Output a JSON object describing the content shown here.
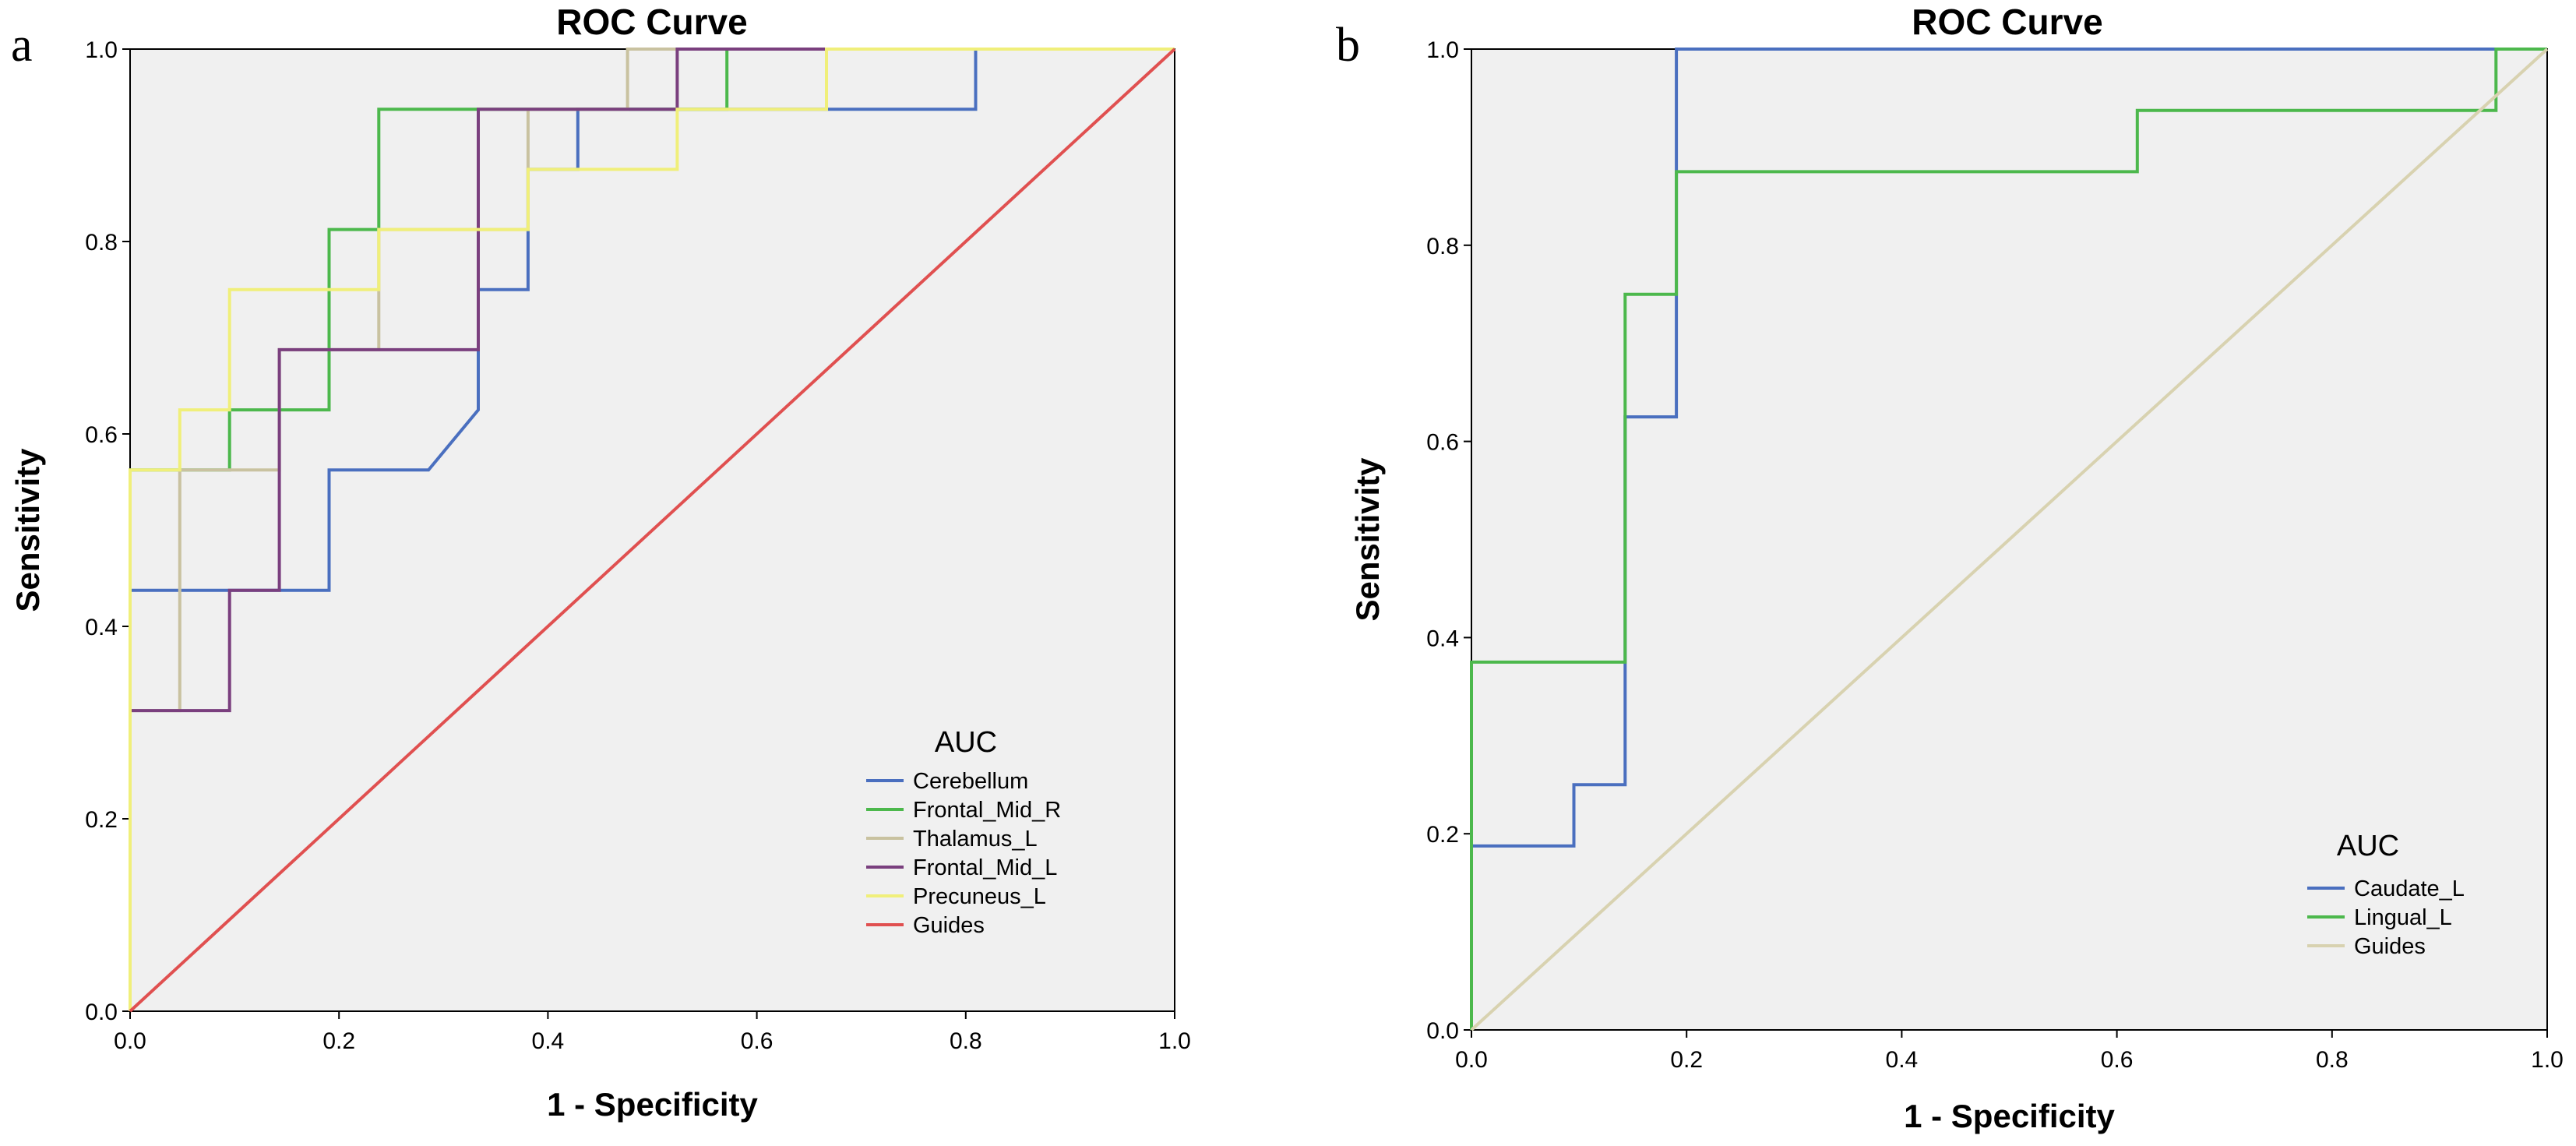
{
  "chart_data": [
    {
      "type": "line",
      "panel_label": "a",
      "title": "ROC Curve",
      "xlabel": "1 - Specificity",
      "ylabel": "Sensitivity",
      "xlim": [
        0,
        1
      ],
      "ylim": [
        0,
        1
      ],
      "x_ticks": [
        "0.0",
        "0.2",
        "0.4",
        "0.6",
        "0.8",
        "1.0"
      ],
      "y_ticks": [
        "0.0",
        "0.2",
        "0.4",
        "0.6",
        "0.8",
        "1.0"
      ],
      "grid": false,
      "legend": {
        "title": "AUC",
        "position": "bottom-right"
      },
      "series": [
        {
          "name": "Cerebellum",
          "color": "#4a6fbf",
          "points": [
            [
              0,
              0
            ],
            [
              0,
              0.4375
            ],
            [
              0.1905,
              0.4375
            ],
            [
              0.1905,
              0.5625
            ],
            [
              0.2857,
              0.5625
            ],
            [
              0.3333,
              0.625
            ],
            [
              0.3333,
              0.75
            ],
            [
              0.381,
              0.75
            ],
            [
              0.381,
              0.875
            ],
            [
              0.4286,
              0.875
            ],
            [
              0.4286,
              0.9375
            ],
            [
              0.8095,
              0.9375
            ],
            [
              0.8095,
              1
            ],
            [
              1,
              1
            ]
          ]
        },
        {
          "name": "Frontal_Mid_R",
          "color": "#4cb84c",
          "points": [
            [
              0,
              0
            ],
            [
              0,
              0.5625
            ],
            [
              0.0952,
              0.5625
            ],
            [
              0.0952,
              0.625
            ],
            [
              0.1905,
              0.625
            ],
            [
              0.1905,
              0.8125
            ],
            [
              0.2381,
              0.8125
            ],
            [
              0.2381,
              0.9375
            ],
            [
              0.5714,
              0.9375
            ],
            [
              0.5714,
              1
            ],
            [
              1,
              1
            ]
          ]
        },
        {
          "name": "Thalamus_L",
          "color": "#c9c2a0",
          "points": [
            [
              0,
              0
            ],
            [
              0,
              0.3125
            ],
            [
              0.0476,
              0.3125
            ],
            [
              0.0476,
              0.5625
            ],
            [
              0.1429,
              0.5625
            ],
            [
              0.1429,
              0.6875
            ],
            [
              0.2381,
              0.6875
            ],
            [
              0.2381,
              0.8125
            ],
            [
              0.381,
              0.8125
            ],
            [
              0.381,
              0.875
            ],
            [
              0.381,
              0.9375
            ],
            [
              0.4762,
              0.9375
            ],
            [
              0.4762,
              1
            ],
            [
              1,
              1
            ]
          ]
        },
        {
          "name": "Frontal_Mid_L",
          "color": "#7a3f7e",
          "points": [
            [
              0,
              0
            ],
            [
              0,
              0.3125
            ],
            [
              0.0952,
              0.3125
            ],
            [
              0.0952,
              0.4375
            ],
            [
              0.1429,
              0.4375
            ],
            [
              0.1429,
              0.6875
            ],
            [
              0.3333,
              0.6875
            ],
            [
              0.3333,
              0.9375
            ],
            [
              0.5238,
              0.9375
            ],
            [
              0.5238,
              1
            ],
            [
              1,
              1
            ]
          ]
        },
        {
          "name": "Precuneus_L",
          "color": "#f0ef7a",
          "points": [
            [
              0,
              0
            ],
            [
              0,
              0.5625
            ],
            [
              0.0476,
              0.5625
            ],
            [
              0.0476,
              0.625
            ],
            [
              0.0952,
              0.625
            ],
            [
              0.0952,
              0.75
            ],
            [
              0.2381,
              0.75
            ],
            [
              0.2381,
              0.8125
            ],
            [
              0.381,
              0.8125
            ],
            [
              0.381,
              0.875
            ],
            [
              0.5238,
              0.875
            ],
            [
              0.5238,
              0.9375
            ],
            [
              0.6667,
              0.9375
            ],
            [
              0.6667,
              1
            ],
            [
              1,
              1
            ]
          ]
        },
        {
          "name": "Guides",
          "color": "#e05050",
          "points": [
            [
              0,
              0
            ],
            [
              1,
              1
            ]
          ]
        }
      ]
    },
    {
      "type": "line",
      "panel_label": "b",
      "title": "ROC Curve",
      "xlabel": "1 - Specificity",
      "ylabel": "Sensitivity",
      "xlim": [
        0,
        1
      ],
      "ylim": [
        0,
        1
      ],
      "x_ticks": [
        "0.0",
        "0.2",
        "0.4",
        "0.6",
        "0.8",
        "1.0"
      ],
      "y_ticks": [
        "0.0",
        "0.2",
        "0.4",
        "0.6",
        "0.8",
        "1.0"
      ],
      "grid": false,
      "legend": {
        "title": "AUC",
        "position": "bottom-right"
      },
      "series": [
        {
          "name": "Caudate_L",
          "color": "#4a6fbf",
          "points": [
            [
              0,
              0
            ],
            [
              0,
              0.1875
            ],
            [
              0.0952,
              0.1875
            ],
            [
              0.0952,
              0.25
            ],
            [
              0.1429,
              0.25
            ],
            [
              0.1429,
              0.625
            ],
            [
              0.1905,
              0.625
            ],
            [
              0.1905,
              1
            ],
            [
              1,
              1
            ]
          ]
        },
        {
          "name": "Lingual_L",
          "color": "#4cb84c",
          "points": [
            [
              0,
              0
            ],
            [
              0,
              0.375
            ],
            [
              0.1429,
              0.375
            ],
            [
              0.1429,
              0.75
            ],
            [
              0.1905,
              0.75
            ],
            [
              0.1905,
              0.875
            ],
            [
              0.619,
              0.875
            ],
            [
              0.619,
              0.9375
            ],
            [
              0.9524,
              0.9375
            ],
            [
              0.9524,
              1
            ],
            [
              1,
              1
            ]
          ]
        },
        {
          "name": "Guides",
          "color": "#d8d2b0",
          "points": [
            [
              0,
              0
            ],
            [
              1,
              1
            ]
          ]
        }
      ]
    }
  ]
}
